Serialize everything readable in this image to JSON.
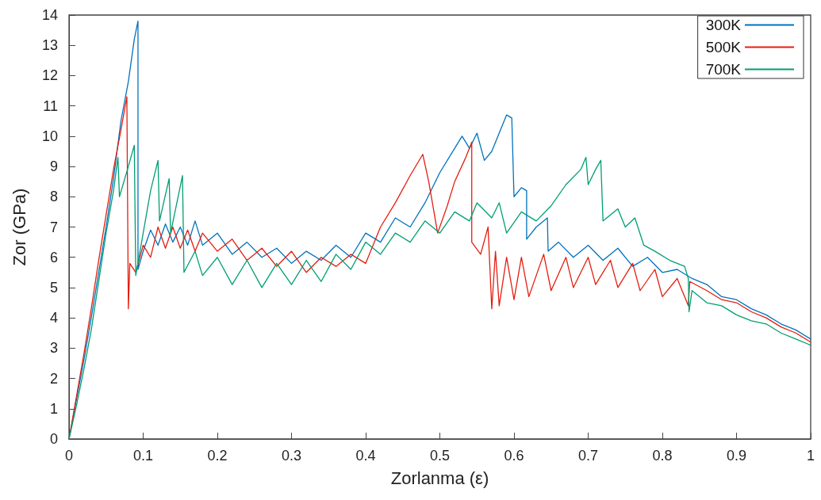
{
  "chart_data": {
    "type": "line",
    "xlabel": "Zorlanma (ε)",
    "ylabel": "Zor (GPa)",
    "xlim": [
      0,
      1
    ],
    "xticks": [
      0,
      0.1,
      0.2,
      0.3,
      0.4,
      0.5,
      0.6,
      0.7,
      0.8,
      0.9,
      1
    ],
    "ylim": [
      0,
      14
    ],
    "yticks": [
      0,
      1,
      2,
      3,
      4,
      5,
      6,
      7,
      8,
      9,
      10,
      11,
      12,
      13,
      14
    ],
    "grid": false,
    "legend": "top right",
    "marker": "none",
    "line_style": "solid",
    "series": [
      {
        "name": "300K",
        "color": "#0072bd",
        "x": [
          0,
          0.01,
          0.02,
          0.03,
          0.04,
          0.05,
          0.06,
          0.07,
          0.08,
          0.088,
          0.093,
          0.093,
          0.1,
          0.11,
          0.12,
          0.13,
          0.14,
          0.15,
          0.16,
          0.17,
          0.18,
          0.2,
          0.22,
          0.24,
          0.26,
          0.28,
          0.3,
          0.32,
          0.34,
          0.36,
          0.38,
          0.4,
          0.42,
          0.44,
          0.46,
          0.48,
          0.5,
          0.52,
          0.53,
          0.54,
          0.55,
          0.56,
          0.57,
          0.58,
          0.59,
          0.597,
          0.6,
          0.61,
          0.617,
          0.617,
          0.63,
          0.645,
          0.646,
          0.66,
          0.68,
          0.7,
          0.72,
          0.74,
          0.76,
          0.78,
          0.8,
          0.82,
          0.84,
          0.86,
          0.88,
          0.9,
          0.92,
          0.94,
          0.96,
          0.98,
          1.0
        ],
        "values": [
          0,
          1.3,
          2.6,
          4,
          5.5,
          7,
          8.6,
          10.5,
          11.8,
          13.2,
          13.8,
          5.6,
          6.2,
          6.9,
          6.4,
          7.1,
          6.5,
          7.0,
          6.4,
          7.2,
          6.4,
          6.8,
          6.1,
          6.5,
          6.0,
          6.3,
          5.8,
          6.2,
          5.9,
          6.4,
          6.0,
          6.8,
          6.5,
          7.3,
          7.0,
          7.8,
          8.8,
          9.6,
          10.0,
          9.6,
          10.1,
          9.2,
          9.5,
          10.1,
          10.7,
          10.6,
          8.0,
          8.3,
          8.2,
          6.6,
          7.0,
          7.3,
          6.2,
          6.5,
          6.0,
          6.4,
          5.9,
          6.3,
          5.7,
          6.0,
          5.5,
          5.6,
          5.3,
          5.1,
          4.7,
          4.6,
          4.3,
          4.1,
          3.8,
          3.6,
          3.3
        ]
      },
      {
        "name": "500K",
        "color": "#e41e10",
        "x": [
          0,
          0.01,
          0.02,
          0.03,
          0.04,
          0.05,
          0.06,
          0.07,
          0.078,
          0.08,
          0.082,
          0.09,
          0.1,
          0.11,
          0.12,
          0.13,
          0.14,
          0.15,
          0.16,
          0.17,
          0.18,
          0.2,
          0.22,
          0.24,
          0.26,
          0.28,
          0.3,
          0.32,
          0.34,
          0.36,
          0.38,
          0.4,
          0.42,
          0.44,
          0.46,
          0.477,
          0.485,
          0.497,
          0.51,
          0.52,
          0.535,
          0.543,
          0.543,
          0.555,
          0.565,
          0.57,
          0.575,
          0.58,
          0.59,
          0.6,
          0.61,
          0.62,
          0.64,
          0.65,
          0.67,
          0.68,
          0.7,
          0.71,
          0.73,
          0.74,
          0.76,
          0.77,
          0.79,
          0.8,
          0.82,
          0.835,
          0.837,
          0.86,
          0.88,
          0.9,
          0.92,
          0.94,
          0.96,
          0.98,
          1.0
        ],
        "values": [
          0,
          1.4,
          2.8,
          4.3,
          5.9,
          7.4,
          8.9,
          10.2,
          11.3,
          4.3,
          5.8,
          5.5,
          6.4,
          6.0,
          7.0,
          6.3,
          7.0,
          6.3,
          6.9,
          6.2,
          6.8,
          6.2,
          6.6,
          5.9,
          6.3,
          5.7,
          6.2,
          5.5,
          6.0,
          5.7,
          6.1,
          5.8,
          7.0,
          7.8,
          8.7,
          9.4,
          8.5,
          6.8,
          7.7,
          8.5,
          9.3,
          9.8,
          6.5,
          6.1,
          7.0,
          4.3,
          6.2,
          4.4,
          6.0,
          4.6,
          6.0,
          4.7,
          6.1,
          4.9,
          6.0,
          5.0,
          6.0,
          5.1,
          5.9,
          5.0,
          5.8,
          4.9,
          5.6,
          4.7,
          5.3,
          4.4,
          5.2,
          4.9,
          4.6,
          4.5,
          4.2,
          4.0,
          3.7,
          3.5,
          3.2
        ]
      },
      {
        "name": "700K",
        "color": "#009e73",
        "x": [
          0,
          0.01,
          0.02,
          0.03,
          0.04,
          0.05,
          0.06,
          0.066,
          0.068,
          0.08,
          0.088,
          0.09,
          0.1,
          0.11,
          0.12,
          0.122,
          0.135,
          0.137,
          0.153,
          0.155,
          0.17,
          0.18,
          0.2,
          0.22,
          0.24,
          0.26,
          0.28,
          0.3,
          0.32,
          0.34,
          0.36,
          0.38,
          0.4,
          0.42,
          0.44,
          0.46,
          0.48,
          0.5,
          0.52,
          0.54,
          0.55,
          0.57,
          0.58,
          0.59,
          0.61,
          0.63,
          0.65,
          0.67,
          0.69,
          0.697,
          0.7,
          0.71,
          0.717,
          0.72,
          0.74,
          0.75,
          0.763,
          0.775,
          0.79,
          0.81,
          0.83,
          0.835,
          0.836,
          0.84,
          0.86,
          0.88,
          0.9,
          0.92,
          0.94,
          0.96,
          0.98,
          1.0
        ],
        "values": [
          0,
          1.1,
          2.3,
          3.6,
          5.2,
          6.8,
          8.2,
          9.3,
          8.0,
          9.0,
          9.7,
          5.4,
          6.8,
          8.2,
          9.2,
          7.2,
          8.6,
          6.8,
          8.7,
          5.5,
          6.2,
          5.4,
          6.0,
          5.1,
          5.9,
          5.0,
          5.8,
          5.1,
          5.9,
          5.2,
          6.1,
          5.6,
          6.5,
          6.1,
          6.8,
          6.5,
          7.2,
          6.8,
          7.5,
          7.2,
          7.8,
          7.3,
          7.8,
          6.8,
          7.5,
          7.2,
          7.7,
          8.4,
          8.9,
          9.3,
          8.4,
          8.9,
          9.2,
          7.2,
          7.6,
          7.0,
          7.3,
          6.4,
          6.2,
          5.9,
          5.7,
          5.3,
          4.2,
          4.9,
          4.5,
          4.4,
          4.1,
          3.9,
          3.8,
          3.5,
          3.3,
          3.1
        ]
      }
    ]
  }
}
